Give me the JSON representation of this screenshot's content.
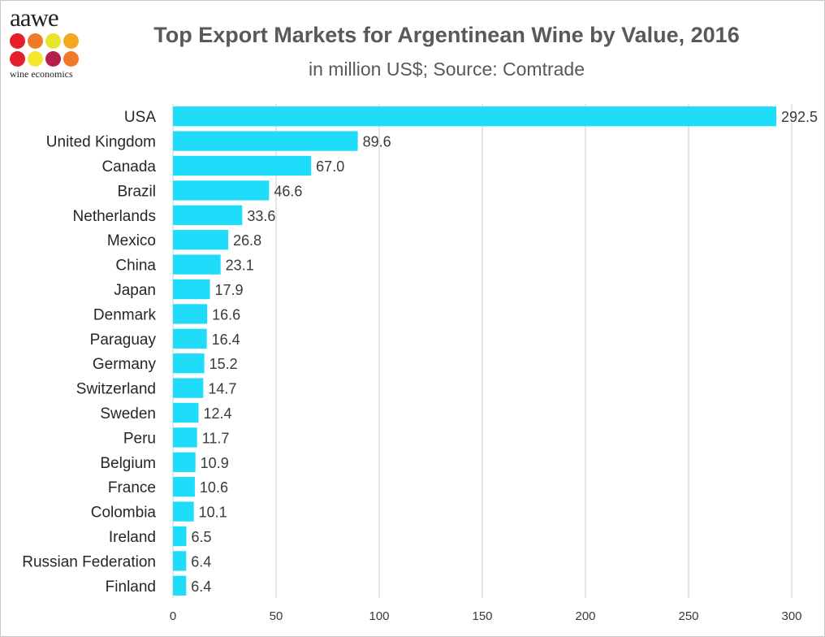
{
  "logo": {
    "text": "aawe",
    "subtext": "wine economics",
    "dot_colors": [
      "#e51f2b",
      "#f07a2a",
      "#e6e62e",
      "#f5a623",
      "#e51f2b",
      "#f5e62e",
      "#b5204b",
      "#f07a2a"
    ]
  },
  "chart_data": {
    "type": "bar",
    "orientation": "horizontal",
    "title": "Top Export Markets for Argentinean Wine by Value, 2016",
    "subtitle": "in million US$; Source: Comtrade",
    "categories": [
      "USA",
      "United Kingdom",
      "Canada",
      "Brazil",
      "Netherlands",
      "Mexico",
      "China",
      "Japan",
      "Denmark",
      "Paraguay",
      "Germany",
      "Switzerland",
      "Sweden",
      "Peru",
      "Belgium",
      "France",
      "Colombia",
      "Ireland",
      "Russian Federation",
      "Finland"
    ],
    "values": [
      292.5,
      89.6,
      67.0,
      46.6,
      33.6,
      26.8,
      23.1,
      17.9,
      16.6,
      16.4,
      15.2,
      14.7,
      12.4,
      11.7,
      10.9,
      10.6,
      10.1,
      6.5,
      6.4,
      6.4
    ],
    "value_labels": [
      "292.5",
      "89.6",
      "67.0",
      "46.6",
      "33.6",
      "26.8",
      "23.1",
      "17.9",
      "16.6",
      "16.4",
      "15.2",
      "14.7",
      "12.4",
      "11.7",
      "10.9",
      "10.6",
      "10.1",
      "6.5",
      "6.4",
      "6.4"
    ],
    "xlim": [
      0,
      300
    ],
    "xticks": [
      0,
      50,
      100,
      150,
      200,
      250,
      300
    ],
    "xtick_labels": [
      "0",
      "50",
      "100",
      "150",
      "200",
      "250",
      "300"
    ],
    "grid": "vertical",
    "bar_color": "#1edcfa",
    "grid_color": "#d9d9d9"
  }
}
